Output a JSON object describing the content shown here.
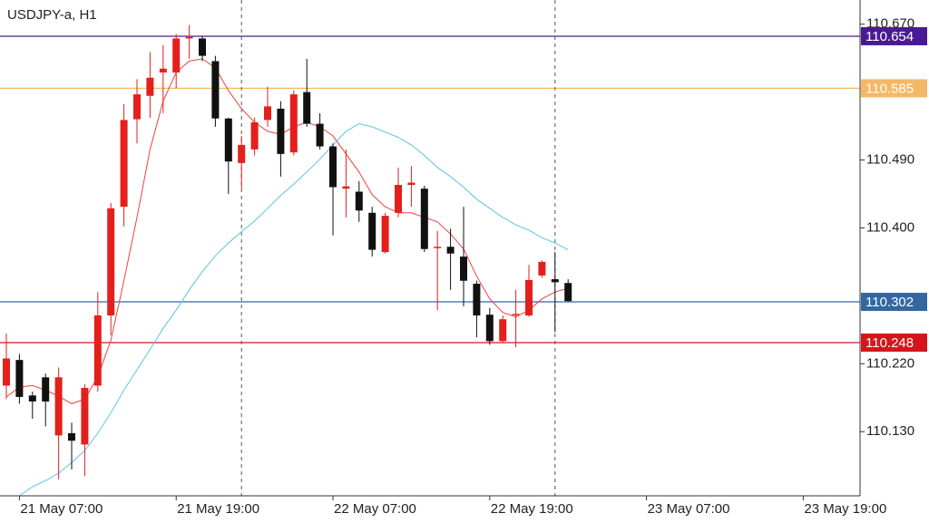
{
  "chart_data": {
    "type": "candlestick",
    "title": "USDJPY-a, H1",
    "categories": [
      null,
      "21 May 07:00",
      null,
      null,
      null,
      null,
      null,
      null,
      null,
      null,
      null,
      null,
      null,
      "21 May 19:00",
      null,
      null,
      null,
      null,
      null,
      null,
      null,
      null,
      null,
      null,
      null,
      "22 May 07:00",
      null,
      null,
      null,
      null,
      null,
      null,
      null,
      null,
      null,
      null,
      null,
      "22 May 19:00",
      null,
      null,
      null,
      null,
      null,
      null,
      null,
      null,
      null,
      null,
      null,
      "23 May 07:00",
      null,
      null,
      null,
      null,
      null,
      null,
      null,
      null,
      null,
      null,
      null,
      "23 May 19:00"
    ],
    "open": [
      110.191,
      110.225,
      110.178,
      110.202,
      110.125,
      110.128,
      110.113,
      110.191,
      110.284,
      110.428,
      110.544,
      110.575,
      110.606,
      110.606,
      110.651,
      110.651,
      110.621,
      110.545,
      110.486,
      110.504,
      110.543,
      110.558,
      110.5,
      110.58,
      110.538,
      110.508,
      110.452,
      110.448,
      110.42,
      110.368,
      110.42,
      110.457,
      110.452,
      110.374,
      110.375,
      110.362,
      110.326,
      110.285,
      110.25,
      110.285,
      110.284,
      110.337,
      110.332,
      110.327,
      null,
      null,
      null,
      null,
      null,
      null,
      null,
      null,
      null,
      null,
      null,
      null,
      null,
      null,
      null,
      null,
      null,
      null
    ],
    "high": [
      110.26,
      110.233,
      110.183,
      110.207,
      110.215,
      110.142,
      110.193,
      110.315,
      110.433,
      110.564,
      110.597,
      110.633,
      110.642,
      110.657,
      110.669,
      110.654,
      110.628,
      110.546,
      110.522,
      110.546,
      110.587,
      110.568,
      110.582,
      110.624,
      110.552,
      110.512,
      110.504,
      110.462,
      110.428,
      110.42,
      110.48,
      110.482,
      110.456,
      110.396,
      110.399,
      110.428,
      110.33,
      110.294,
      110.284,
      110.318,
      110.351,
      110.357,
      110.368,
      110.332,
      null,
      null,
      null,
      null,
      null,
      null,
      null,
      null,
      null,
      null,
      null,
      null,
      null,
      null,
      null,
      null,
      null,
      null
    ],
    "low": [
      110.173,
      110.167,
      110.147,
      110.137,
      110.067,
      110.08,
      110.071,
      110.183,
      110.258,
      110.402,
      110.512,
      110.546,
      110.552,
      110.585,
      110.624,
      110.621,
      110.534,
      110.445,
      110.452,
      110.496,
      110.534,
      110.468,
      110.496,
      110.534,
      110.504,
      110.39,
      110.414,
      110.408,
      110.362,
      110.366,
      110.414,
      110.428,
      110.368,
      110.291,
      110.318,
      110.296,
      110.255,
      110.245,
      110.248,
      110.242,
      110.282,
      110.334,
      110.262,
      110.302,
      null,
      null,
      null,
      null,
      null,
      null,
      null,
      null,
      null,
      null,
      null,
      null,
      null,
      null,
      null,
      null,
      null,
      null
    ],
    "close": [
      110.227,
      110.176,
      110.17,
      110.17,
      110.202,
      110.118,
      110.188,
      110.284,
      110.426,
      110.543,
      110.577,
      110.599,
      110.611,
      110.651,
      110.653,
      110.628,
      110.545,
      110.488,
      110.51,
      110.54,
      110.561,
      110.498,
      110.577,
      110.538,
      110.508,
      110.454,
      110.455,
      110.423,
      110.371,
      110.416,
      110.457,
      110.46,
      110.372,
      110.375,
      110.366,
      110.33,
      110.284,
      110.25,
      110.279,
      110.286,
      110.331,
      110.355,
      110.328,
      110.303,
      null,
      null,
      null,
      null,
      null,
      null,
      null,
      null,
      null,
      null,
      null,
      null,
      null,
      null,
      null,
      null,
      null,
      null
    ],
    "up_color": "#e3201b",
    "down_color": "#111111",
    "series": [
      {
        "color": "#f0403a",
        "values": [
          110.176,
          110.189,
          110.191,
          110.185,
          110.177,
          110.167,
          110.173,
          110.203,
          110.251,
          110.33,
          110.414,
          110.504,
          110.568,
          110.606,
          110.621,
          110.624,
          110.612,
          110.582,
          110.558,
          110.54,
          110.528,
          110.524,
          110.534,
          110.54,
          110.534,
          110.522,
          110.498,
          110.474,
          110.444,
          110.428,
          110.42,
          110.42,
          110.414,
          110.408,
          110.392,
          110.372,
          110.336,
          110.306,
          110.288,
          110.282,
          110.291,
          110.306,
          110.315,
          110.32,
          null,
          null,
          null,
          null,
          null,
          null,
          null,
          null,
          null,
          null,
          null,
          null,
          null,
          null,
          null,
          null,
          null,
          null
        ]
      },
      {
        "color": "#5bc4e0",
        "values": [
          null,
          110.045,
          110.057,
          110.065,
          110.075,
          110.089,
          110.105,
          110.128,
          110.155,
          110.185,
          110.212,
          110.239,
          110.267,
          110.291,
          110.318,
          110.342,
          110.363,
          110.38,
          110.395,
          110.409,
          110.426,
          110.443,
          110.458,
          110.474,
          110.491,
          110.51,
          110.528,
          110.538,
          110.534,
          110.527,
          110.52,
          110.51,
          110.496,
          110.48,
          110.468,
          110.454,
          110.438,
          110.426,
          110.414,
          110.404,
          110.397,
          110.387,
          110.38,
          110.371,
          null,
          null,
          null,
          null,
          null,
          null,
          null,
          null,
          null,
          null,
          null,
          null,
          null,
          null,
          null,
          null,
          null,
          null
        ]
      }
    ],
    "levels": [
      {
        "value": 110.654,
        "color": "#4a1a96"
      },
      {
        "value": 110.585,
        "color": "#f5b866"
      },
      {
        "value": 110.302,
        "color": "#3467a0"
      },
      {
        "value": 110.248,
        "color": "#d4161b"
      }
    ],
    "ylim": [
      110.045,
      110.702
    ],
    "yticks": [
      {
        "value": 110.67,
        "label": "110.670"
      },
      {
        "value": 110.49,
        "label": "110.490"
      },
      {
        "value": 110.4,
        "label": "110.400"
      },
      {
        "value": 110.22,
        "label": "110.220"
      },
      {
        "value": 110.13,
        "label": "110.130"
      }
    ]
  }
}
